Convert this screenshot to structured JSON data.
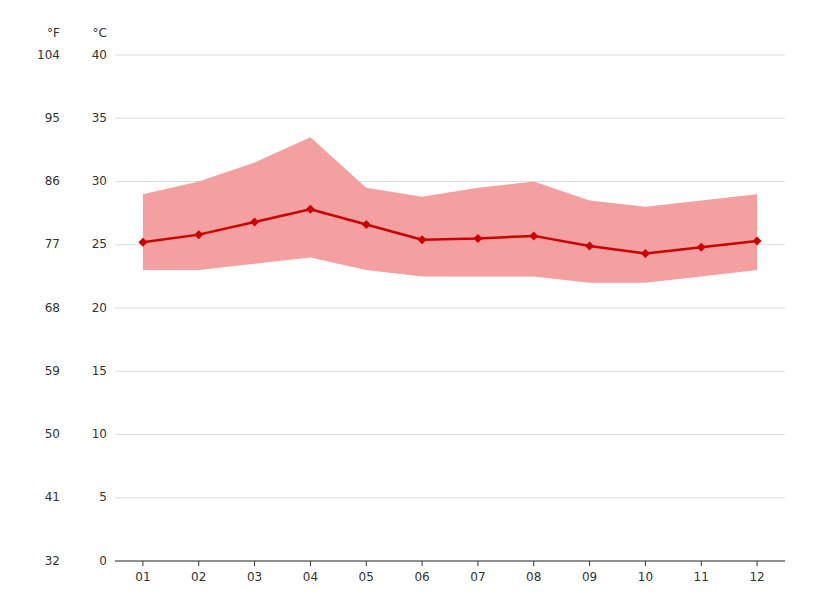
{
  "chart_data": {
    "type": "line",
    "x": [
      1,
      2,
      3,
      4,
      5,
      6,
      7,
      8,
      9,
      10,
      11,
      12
    ],
    "xlim": [
      0.5,
      12.5
    ],
    "xticks": [
      {
        "value": 1,
        "label": "01"
      },
      {
        "value": 2,
        "label": "02"
      },
      {
        "value": 3,
        "label": "03"
      },
      {
        "value": 4,
        "label": "04"
      },
      {
        "value": 5,
        "label": "05"
      },
      {
        "value": 6,
        "label": "06"
      },
      {
        "value": 7,
        "label": "07"
      },
      {
        "value": 8,
        "label": "08"
      },
      {
        "value": 9,
        "label": "09"
      },
      {
        "value": 10,
        "label": "10"
      },
      {
        "value": 11,
        "label": "11"
      },
      {
        "value": 12,
        "label": "12"
      }
    ],
    "ylabel": "°C",
    "ylim": [
      0,
      40
    ],
    "yticks": [
      0,
      5,
      10,
      15,
      20,
      25,
      30,
      35,
      40
    ],
    "y2label": "°F",
    "y2lim": [
      32,
      104
    ],
    "y2ticks": [
      32,
      41,
      50,
      59,
      68,
      77,
      86,
      95,
      104
    ],
    "grid": true,
    "series": [
      {
        "type": "band",
        "color": "#f4a0a0",
        "low": [
          23.0,
          23.0,
          23.5,
          24.0,
          23.0,
          22.5,
          22.5,
          22.5,
          22.0,
          22.0,
          22.5,
          23.0
        ],
        "high": [
          29.0,
          30.0,
          31.5,
          33.5,
          29.5,
          28.8,
          29.5,
          30.0,
          28.5,
          28.0,
          28.5,
          29.0
        ]
      },
      {
        "type": "line",
        "color": "#cc0000",
        "marker": "diamond",
        "values": [
          25.2,
          25.8,
          26.8,
          27.8,
          26.6,
          25.4,
          25.5,
          25.7,
          24.9,
          24.3,
          24.8,
          25.3
        ]
      }
    ]
  }
}
